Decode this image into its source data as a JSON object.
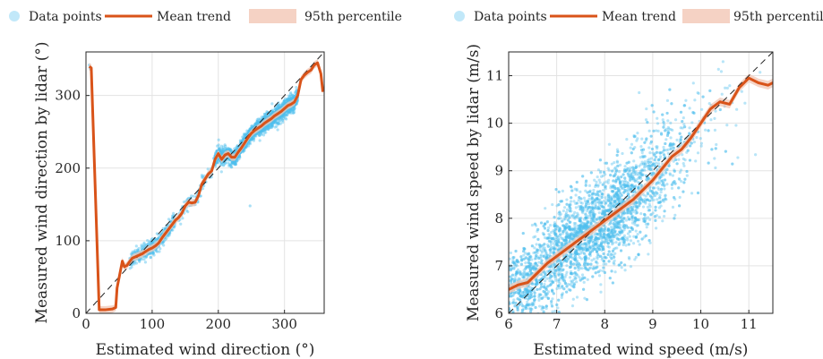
{
  "colors": {
    "points": "#4DBEEE",
    "trend": "#D95319",
    "band": "#F2C7B5",
    "grid": "#E3E3E3",
    "axis": "#262626",
    "diag": "#222222"
  },
  "legend": {
    "points_label": "Data points",
    "trend_label": "Mean trend",
    "band_label": "95th percentile"
  },
  "chart_data": [
    {
      "type": "scatter",
      "xlabel": "Estimated wind direction (°)",
      "ylabel": "Measured wind direction by lidar (°)",
      "xlim": [
        0,
        360
      ],
      "ylim": [
        0,
        360
      ],
      "xticks": [
        0,
        100,
        200,
        300
      ],
      "yticks": [
        0,
        100,
        200,
        300
      ],
      "grid": true,
      "legend_position": "top",
      "reference_line": "y = x (dashed)",
      "series": [
        {
          "name": "Mean trend",
          "x": [
            5,
            8,
            20,
            30,
            40,
            45,
            47,
            55,
            58,
            62,
            65,
            70,
            75,
            80,
            85,
            90,
            95,
            100,
            105,
            110,
            115,
            120,
            125,
            130,
            135,
            140,
            145,
            150,
            155,
            160,
            165,
            170,
            175,
            180,
            185,
            190,
            195,
            200,
            205,
            210,
            215,
            220,
            225,
            230,
            235,
            240,
            245,
            250,
            255,
            260,
            265,
            270,
            275,
            280,
            285,
            290,
            295,
            300,
            305,
            310,
            315,
            320,
            325,
            330,
            335,
            340,
            345,
            350,
            355,
            358
          ],
          "y": [
            340,
            338,
            5,
            5,
            6,
            8,
            35,
            72,
            64,
            66,
            70,
            76,
            78,
            80,
            82,
            85,
            88,
            90,
            93,
            97,
            104,
            110,
            116,
            122,
            128,
            132,
            138,
            148,
            153,
            152,
            153,
            162,
            178,
            185,
            192,
            196,
            212,
            220,
            212,
            218,
            220,
            215,
            215,
            222,
            228,
            235,
            242,
            248,
            252,
            255,
            258,
            262,
            265,
            268,
            272,
            275,
            278,
            282,
            286,
            288,
            291,
            300,
            322,
            328,
            332,
            335,
            342,
            345,
            330,
            305
          ]
        }
      ]
    },
    {
      "type": "scatter",
      "xlabel": "Estimated wind speed (m/s)",
      "ylabel": "Measured wind speed by lidar (m/s)",
      "xlim": [
        6,
        11.5
      ],
      "ylim": [
        6,
        11.5
      ],
      "xticks": [
        6,
        7,
        8,
        9,
        10,
        11
      ],
      "yticks": [
        6,
        7,
        8,
        9,
        10,
        11
      ],
      "grid": true,
      "legend_position": "top",
      "reference_line": "y = x (dashed)",
      "series": [
        {
          "name": "Mean trend",
          "x": [
            6.0,
            6.2,
            6.4,
            6.6,
            6.8,
            7.0,
            7.2,
            7.4,
            7.6,
            7.8,
            8.0,
            8.2,
            8.4,
            8.6,
            8.8,
            9.0,
            9.2,
            9.4,
            9.6,
            9.8,
            10.0,
            10.2,
            10.4,
            10.6,
            10.8,
            11.0,
            11.2,
            11.4,
            11.5
          ],
          "y": [
            6.5,
            6.6,
            6.65,
            6.85,
            7.05,
            7.2,
            7.35,
            7.5,
            7.65,
            7.8,
            7.95,
            8.1,
            8.25,
            8.4,
            8.6,
            8.8,
            9.05,
            9.3,
            9.45,
            9.7,
            10.0,
            10.3,
            10.45,
            10.4,
            10.75,
            10.95,
            10.85,
            10.8,
            10.85
          ]
        }
      ]
    }
  ]
}
